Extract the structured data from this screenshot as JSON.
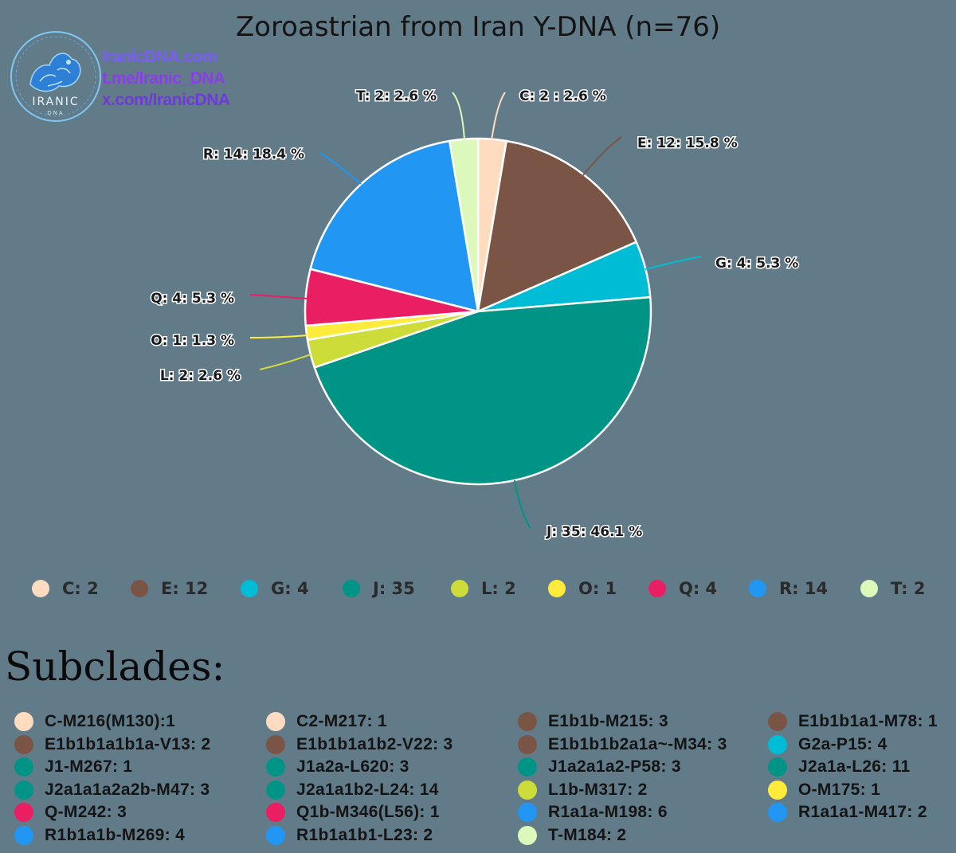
{
  "watermark": {
    "brand": "IRANIC",
    "brand_sub": "DNA",
    "line1": "IranicDNA.com",
    "line2": "t.me/Iranic_DNA",
    "line3": "x.com/IranicDNA"
  },
  "chart_data": {
    "type": "pie",
    "title": "Zoroastrian from Iran Y-DNA (n=76)",
    "total": 76,
    "slices": [
      {
        "name": "C",
        "value": 2,
        "percent": 2.6,
        "color": "#ffdcc0",
        "label": "C: 2 : 2.6 %"
      },
      {
        "name": "E",
        "value": 12,
        "percent": 15.8,
        "color": "#7a5546",
        "label": "E: 12: 15.8 %"
      },
      {
        "name": "G",
        "value": 4,
        "percent": 5.3,
        "color": "#00bcd4",
        "label": "G: 4: 5.3 %"
      },
      {
        "name": "J",
        "value": 35,
        "percent": 46.1,
        "color": "#009486",
        "label": "J: 35: 46.1 %"
      },
      {
        "name": "L",
        "value": 2,
        "percent": 2.6,
        "color": "#cddc39",
        "label": "L: 2: 2.6 %"
      },
      {
        "name": "O",
        "value": 1,
        "percent": 1.3,
        "color": "#ffeb3b",
        "label": "O: 1: 1.3 %"
      },
      {
        "name": "Q",
        "value": 4,
        "percent": 5.3,
        "color": "#e91e63",
        "label": "Q: 4: 5.3 %"
      },
      {
        "name": "R",
        "value": 14,
        "percent": 18.4,
        "color": "#2196f3",
        "label": "R: 14: 18.4 %"
      },
      {
        "name": "T",
        "value": 2,
        "percent": 2.6,
        "color": "#ddf8bb",
        "label": "T: 2: 2.6 %"
      }
    ],
    "legend": [
      {
        "label": "C: 2",
        "color": "#ffdcc0"
      },
      {
        "label": "E: 12",
        "color": "#7a5546"
      },
      {
        "label": "G: 4",
        "color": "#00bcd4"
      },
      {
        "label": "J: 35",
        "color": "#009486"
      },
      {
        "label": "L: 2",
        "color": "#cddc39"
      },
      {
        "label": "O: 1",
        "color": "#ffeb3b"
      },
      {
        "label": "Q: 4",
        "color": "#e91e63"
      },
      {
        "label": "R: 14",
        "color": "#2196f3"
      },
      {
        "label": "T: 2",
        "color": "#ddf8bb"
      }
    ],
    "legend_position": "bottom"
  },
  "subclades": {
    "heading": "Subclades:",
    "items": [
      {
        "label": "C-M216(M130):1",
        "color": "#ffdcc0"
      },
      {
        "label": "C2-M217: 1",
        "color": "#ffdcc0"
      },
      {
        "label": "E1b1b-M215: 3",
        "color": "#7a5546"
      },
      {
        "label": "E1b1b1a1-M78: 1",
        "color": "#7a5546"
      },
      {
        "label": "E1b1b1a1b1a-V13: 2",
        "color": "#7a5546"
      },
      {
        "label": "E1b1b1a1b2-V22: 3",
        "color": "#7a5546"
      },
      {
        "label": "E1b1b1b2a1a~-M34: 3",
        "color": "#7a5546"
      },
      {
        "label": "G2a-P15: 4",
        "color": "#00bcd4"
      },
      {
        "label": "J1-M267: 1",
        "color": "#009486"
      },
      {
        "label": "J1a2a-L620: 3",
        "color": "#009486"
      },
      {
        "label": "J1a2a1a2-P58: 3",
        "color": "#009486"
      },
      {
        "label": "J2a1a-L26: 11",
        "color": "#009486"
      },
      {
        "label": "J2a1a1a2a2b-M47: 3",
        "color": "#009486"
      },
      {
        "label": "J2a1a1b2-L24: 14",
        "color": "#009486"
      },
      {
        "label": "L1b-M317: 2",
        "color": "#cddc39"
      },
      {
        "label": "O-M175: 1",
        "color": "#ffeb3b"
      },
      {
        "label": "Q-M242: 3",
        "color": "#e91e63"
      },
      {
        "label": "Q1b-M346(L56): 1",
        "color": "#e91e63"
      },
      {
        "label": "R1a1a-M198: 6",
        "color": "#2196f3"
      },
      {
        "label": "R1a1a1-M417: 2",
        "color": "#2196f3"
      },
      {
        "label": "R1b1a1b-M269: 4",
        "color": "#2196f3"
      },
      {
        "label": "R1b1a1b1-L23: 2",
        "color": "#2196f3"
      },
      {
        "label": "T-M184: 2",
        "color": "#ddf8bb"
      }
    ]
  }
}
